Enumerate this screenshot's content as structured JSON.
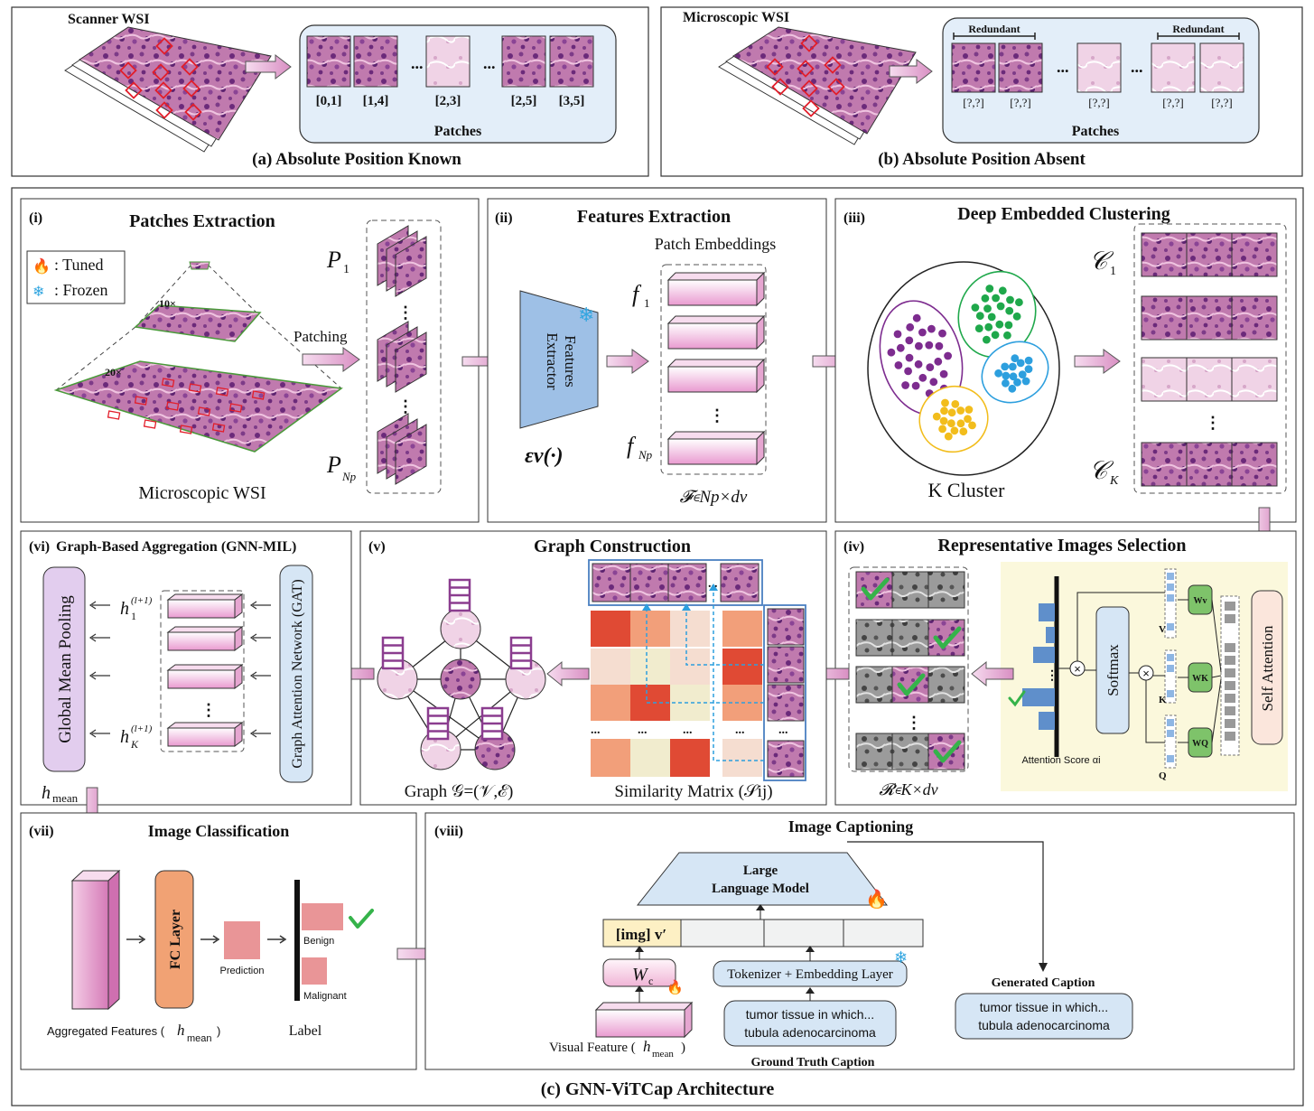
{
  "panel_a": {
    "source": "Scanner WSI",
    "patch_labels": [
      "[0,1]",
      "[1,4]",
      "[2,3]",
      "[2,5]",
      "[3,5]"
    ],
    "ellipsis": "...",
    "patches_label": "Patches",
    "caption": "(a) Absolute Position Known"
  },
  "panel_b": {
    "source": "Microscopic WSI",
    "redundant_label": "Redundant",
    "patch_labels": [
      "[?,?]",
      "[?,?]",
      "[?,?]",
      "[?,?]",
      "[?,?]"
    ],
    "ellipsis": "...",
    "patches_label": "Patches",
    "caption": "(b) Absolute Position Absent"
  },
  "sec_i": {
    "tag": "(i)",
    "title": "Patches Extraction",
    "legend_tuned": ": Tuned",
    "legend_frozen": ": Frozen",
    "mag_10": "10×",
    "mag_20": "20×",
    "patching": "Patching",
    "p1": "P",
    "p1_sub": "1",
    "pn": "P",
    "pn_sub": "Np",
    "wsi_label": "Microscopic WSI"
  },
  "sec_ii": {
    "tag": "(ii)",
    "title": "Features Extraction",
    "embeddings": "Patch Embeddings",
    "extractor": "Features Extractor",
    "extractor_line1": "Features",
    "extractor_line2": "Extractor",
    "encoder": "εv(·)",
    "f1": "f",
    "f1_sub": "1",
    "fn": "f",
    "fn_sub": "Np",
    "matrix": "𝓕∊Np×dv"
  },
  "sec_iii": {
    "tag": "(iii)",
    "title": "Deep Embedded Clustering",
    "cluster_label": "K Cluster",
    "c1": "𝒞",
    "c1_sub": "1",
    "ck": "𝒞",
    "ck_sub": "K"
  },
  "sec_iv": {
    "tag": "(iv)",
    "title": "Representative Images Selection",
    "softmax": "Softmax",
    "self_attention": "Self Attention",
    "attention_score": "Attention Score αi",
    "wv": "Wv",
    "wk": "WK",
    "wq": "WQ",
    "v": "V",
    "k": "K",
    "q": "Q",
    "matrix": "𝓡∊K×dv"
  },
  "sec_v": {
    "tag": "(v)",
    "title": "Graph Construction",
    "graph_label": "Graph 𝒢=(𝒱,ℰ)",
    "similarity_label": "Similarity Matrix (𝒮ij)",
    "ellipsis": "..."
  },
  "sec_vi": {
    "tag": "(vi)",
    "title": "Graph-Based Aggregation (GNN-MIL)",
    "pooling": "Global Mean Pooling",
    "gat": "Graph Attention Network (GAT)",
    "h1": "h",
    "h1_sub": "1",
    "hk": "h",
    "hk_sub": "K",
    "sup": "(l+1)",
    "hmean": "h",
    "hmean_sub": "mean"
  },
  "sec_vii": {
    "tag": "(vii)",
    "title": "Image Classification",
    "fc_layer": "FC Layer",
    "prediction": "Prediction",
    "benign": "Benign",
    "malignant": "Malignant",
    "label": "Label",
    "aggregated": "Aggregated Features (",
    "aggregated_h": "h",
    "aggregated_sub": "mean",
    "aggregated_close": ")"
  },
  "sec_viii": {
    "tag": "(viii)",
    "title": "Image Captioning",
    "llm_line1": "Large",
    "llm_line2": "Language Model",
    "img_token": "[img] v′",
    "wc": "W",
    "wc_sub": "c",
    "tokenizer": "Tokenizer + Embedding Layer",
    "gt_line1": "tumor tissue in which...",
    "gt_line2": "tubula adenocarcinoma",
    "gt_label": "Ground Truth Caption",
    "visual": "Visual Feature (",
    "visual_h": "h",
    "visual_sub": "mean",
    "visual_close": ")",
    "gen_label": "Generated Caption",
    "gen_line1": "tumor tissue in which...",
    "gen_line2": "tubula adenocarcinoma"
  },
  "caption_c": "(c) GNN-ViTCap Architecture",
  "colors": {
    "tissue_pink": "#b9669f",
    "tissue_purple": "#7d3b88",
    "bar_pink": "#e8a4d2",
    "extractor_blue": "#9ec0e6",
    "soft_blue_panel": "#d6e6f5",
    "yellow_panel": "#fbf8dc",
    "fc_orange": "#f1a274",
    "prediction_pink": "#e99597",
    "check_green": "#35b34a",
    "cluster_purple": "#7d2c8f",
    "cluster_green": "#1fa84b",
    "cluster_blue": "#2d9fde",
    "cluster_yellow": "#f2bd1c",
    "heat_red": "#e04a34",
    "heat_orange": "#f29f7a",
    "heat_light": "#f5ddd0",
    "heat_cream": "#f1ecce",
    "arrow_pink": "#e9bcdc"
  }
}
